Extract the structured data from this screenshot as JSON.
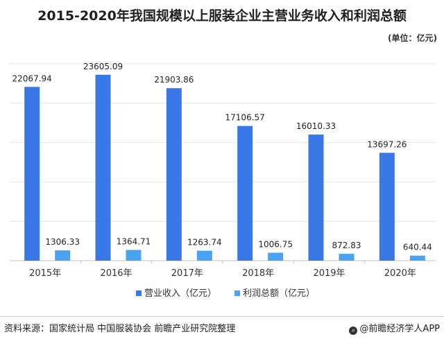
{
  "chart_data": {
    "type": "bar",
    "title": "2015-2020年我国规模以上服装企业主营业务收入和利润总额",
    "unit": "(单位：亿元)",
    "categories": [
      "2015年",
      "2016年",
      "2017年",
      "2018年",
      "2019年",
      "2020年"
    ],
    "series": [
      {
        "name": "营业收入（亿元）",
        "color": "#3b78e7",
        "values": [
          22067.94,
          23605.09,
          21903.86,
          17106.57,
          16010.33,
          13697.26
        ],
        "labels": [
          "22067.94",
          "23605.09",
          "21903.86",
          "17106.57",
          "16010.33",
          "13697.26"
        ]
      },
      {
        "name": "利润总额（亿元）",
        "color": "#4aa3f0",
        "values": [
          1306.33,
          1364.71,
          1263.74,
          1006.75,
          872.83,
          640.44
        ],
        "labels": [
          "1306.33",
          "1364.71",
          "1263.74",
          "1006.75",
          "872.83",
          "640.44"
        ]
      }
    ],
    "ylim": [
      0,
      25000
    ],
    "grid": true,
    "legend": "bottom"
  },
  "footer": {
    "source": "资料来源：国家统计局 中国服装协会 前瞻产业研究院整理",
    "brand": "@前瞻经济学人APP",
    "brand_icon": "magnifier-icon"
  }
}
